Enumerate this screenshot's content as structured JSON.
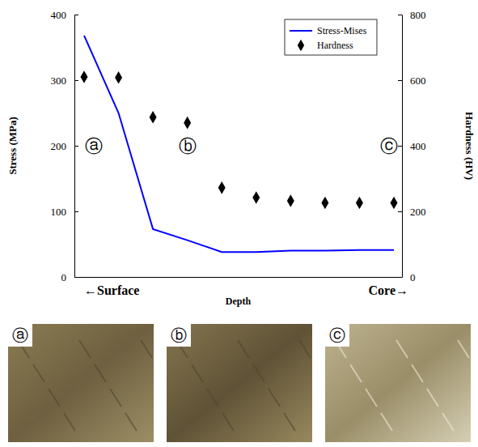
{
  "chart_data": {
    "type": "line",
    "ylabel": "Stress (MPa)",
    "y2label": "Hardness (HV)",
    "xlabel": "Depth",
    "x_end_labels": [
      "←Surface",
      "Core→"
    ],
    "annotations": [
      "ⓐ",
      "ⓑ",
      "ⓒ"
    ],
    "categories": [
      null,
      null,
      null,
      null,
      null,
      null,
      null,
      null,
      null,
      null
    ],
    "series": [
      {
        "name": "Stress-Mises",
        "type": "line",
        "color": "#0000ff",
        "line_style": "solid",
        "values": [
          368,
          250,
          73,
          56,
          38,
          38,
          40,
          40,
          41,
          41
        ]
      },
      {
        "name": "Hardness",
        "type": "scatter",
        "color": "#000000",
        "marker": "diamond",
        "axis": "y2",
        "values": [
          610,
          608,
          487,
          470,
          272,
          242,
          232,
          226,
          226,
          226
        ]
      }
    ],
    "ylim": [
      0,
      400
    ],
    "yticks": [
      0,
      100,
      200,
      300,
      400
    ],
    "y2lim": [
      0,
      800
    ],
    "y2ticks": [
      0,
      200,
      400,
      600,
      800
    ],
    "legend": "upper right"
  }
}
